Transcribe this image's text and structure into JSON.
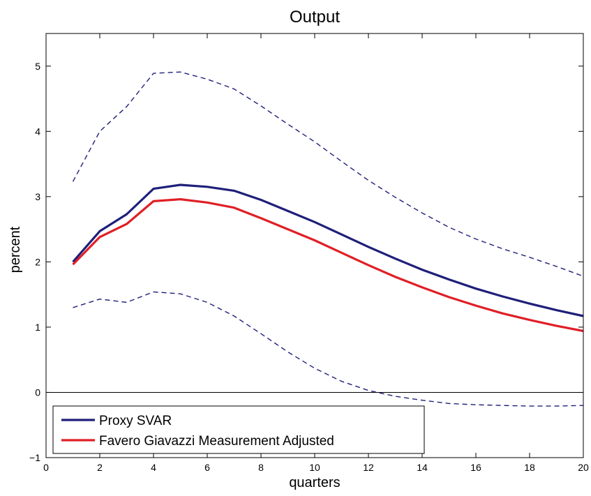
{
  "chart_data": {
    "type": "line",
    "title": "Output",
    "xlabel": "quarters",
    "ylabel": "percent",
    "xlim": [
      0,
      20
    ],
    "ylim": [
      -1,
      5.5
    ],
    "xticks": [
      0,
      2,
      4,
      6,
      8,
      10,
      12,
      14,
      16,
      18,
      20
    ],
    "yticks": [
      -1,
      0,
      1,
      2,
      3,
      4,
      5
    ],
    "zero_line": true,
    "grid": false,
    "legend_position": "bottom-left",
    "x": [
      1,
      2,
      3,
      4,
      5,
      6,
      7,
      8,
      9,
      10,
      11,
      12,
      13,
      14,
      15,
      16,
      17,
      18,
      19,
      20
    ],
    "series": [
      {
        "name": "Proxy SVAR",
        "color": "#1f1f7a",
        "style": "solid",
        "in_legend": true,
        "values": [
          2.0,
          2.47,
          2.73,
          3.12,
          3.18,
          3.15,
          3.09,
          2.95,
          2.78,
          2.61,
          2.42,
          2.23,
          2.05,
          1.88,
          1.73,
          1.59,
          1.47,
          1.36,
          1.26,
          1.17
        ]
      },
      {
        "name": "Favero Giavazzi Measurement Adjusted",
        "color": "#e01f26",
        "style": "solid",
        "in_legend": true,
        "values": [
          1.96,
          2.38,
          2.58,
          2.93,
          2.96,
          2.91,
          2.83,
          2.67,
          2.5,
          2.33,
          2.14,
          1.95,
          1.77,
          1.61,
          1.46,
          1.33,
          1.21,
          1.11,
          1.02,
          0.94
        ]
      },
      {
        "color": "#1f1f7a",
        "style": "dashed",
        "in_legend": false,
        "values": [
          3.23,
          4.0,
          4.38,
          4.89,
          4.91,
          4.8,
          4.65,
          4.39,
          4.11,
          3.84,
          3.54,
          3.25,
          2.99,
          2.75,
          2.53,
          2.35,
          2.2,
          2.07,
          1.93,
          1.78
        ]
      },
      {
        "color": "#1f1f7a",
        "style": "dashed",
        "in_legend": false,
        "values": [
          1.3,
          1.43,
          1.38,
          1.54,
          1.51,
          1.38,
          1.17,
          0.9,
          0.62,
          0.37,
          0.17,
          0.03,
          -0.06,
          -0.12,
          -0.17,
          -0.19,
          -0.2,
          -0.21,
          -0.21,
          -0.2
        ]
      }
    ]
  }
}
